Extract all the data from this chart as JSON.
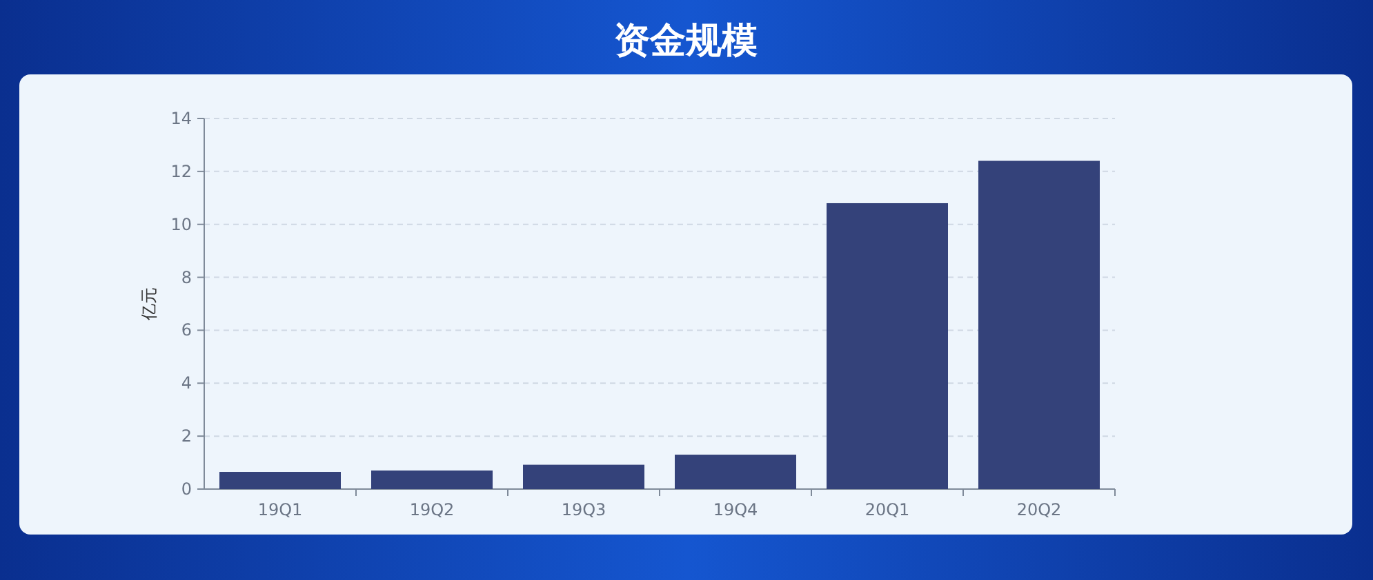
{
  "chart_data": {
    "type": "bar",
    "title": "资金规模",
    "ylabel": "亿元",
    "categories": [
      "19Q1",
      "19Q2",
      "19Q3",
      "19Q4",
      "20Q1",
      "20Q2"
    ],
    "values": [
      0.65,
      0.7,
      0.92,
      1.3,
      10.8,
      12.4
    ],
    "color": "#34427a",
    "ylim": [
      0,
      14
    ],
    "yticks": [
      0,
      2,
      4,
      6,
      8,
      10,
      12,
      14
    ],
    "grid": "y"
  }
}
